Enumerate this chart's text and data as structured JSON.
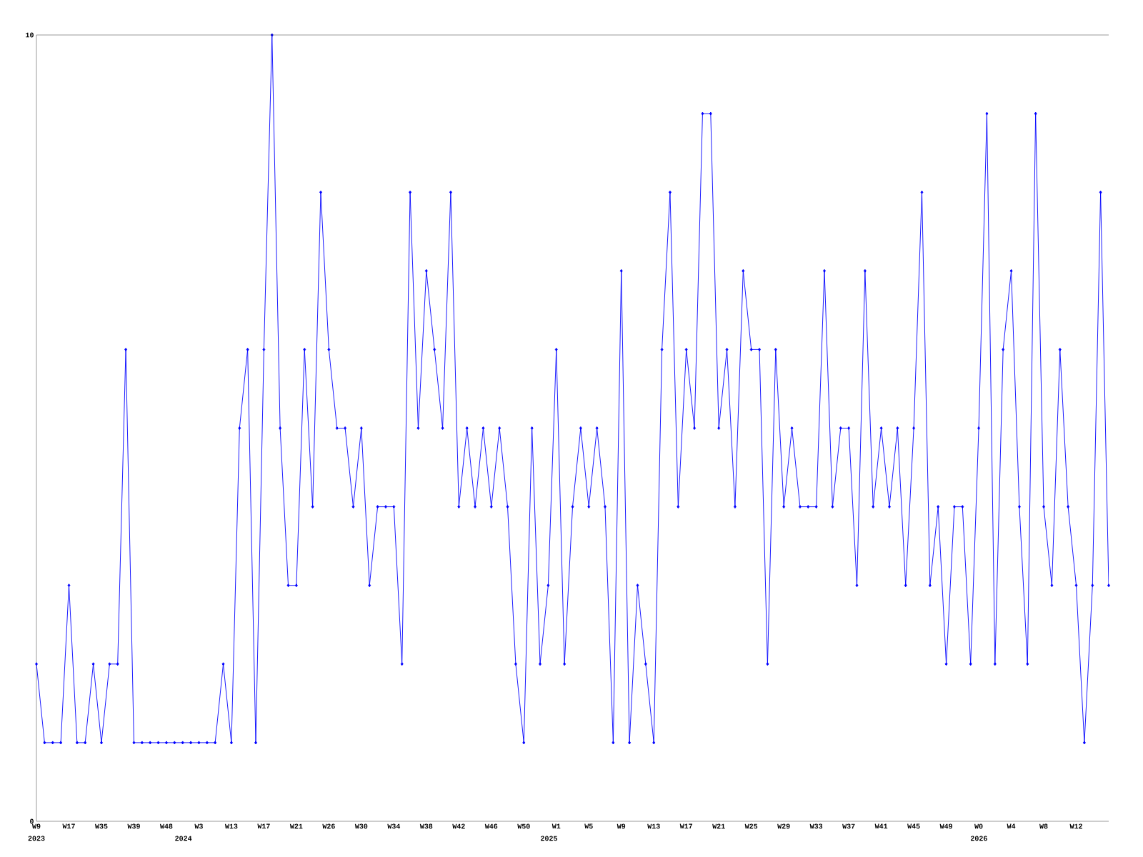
{
  "chart_data": {
    "type": "line",
    "categories": [
      "W9",
      null,
      null,
      null,
      "W17",
      null,
      null,
      null,
      "W35",
      null,
      null,
      null,
      "W39",
      null,
      null,
      null,
      "W48",
      null,
      null,
      null,
      "W3",
      null,
      null,
      null,
      "W13",
      null,
      null,
      null,
      "W17",
      null,
      null,
      null,
      "W21",
      null,
      null,
      null,
      "W26",
      null,
      null,
      null,
      "W30",
      null,
      null,
      null,
      "W34",
      null,
      null,
      null,
      "W38",
      null,
      null,
      null,
      "W42",
      null,
      null,
      null,
      "W46",
      null,
      null,
      null,
      "W50",
      null,
      null,
      null,
      "W1",
      null,
      null,
      null,
      "W5",
      null,
      null,
      null,
      "W9",
      null,
      null,
      null,
      "W13",
      null,
      null,
      null,
      "W17",
      null,
      null,
      null,
      "W21",
      null,
      null,
      null,
      "W25",
      null,
      null,
      null,
      "W29",
      null,
      null,
      null,
      "W33",
      null,
      null,
      null,
      "W37",
      null,
      null,
      null,
      "W41",
      null,
      null,
      null,
      "W45",
      null,
      null,
      null,
      "W49",
      null,
      null,
      null,
      "W0",
      null,
      null,
      null,
      "W4",
      null,
      null,
      null,
      "W8",
      null,
      null,
      null,
      "W12",
      null,
      null,
      null,
      null
    ],
    "series": [
      {
        "color": "#0000ff",
        "values": [
          2,
          1,
          1,
          1,
          3,
          1,
          1,
          2,
          1,
          2,
          2,
          6,
          1,
          1,
          1,
          1,
          1,
          1,
          1,
          1,
          1,
          1,
          1,
          2,
          1,
          5,
          6,
          1,
          6,
          10,
          5,
          3,
          3,
          6,
          4,
          8,
          6,
          5,
          5,
          4,
          5,
          3,
          4,
          4,
          4,
          2,
          8,
          5,
          7,
          6,
          5,
          8,
          4,
          5,
          4,
          5,
          4,
          5,
          4,
          2,
          1,
          5,
          2,
          3,
          6,
          2,
          4,
          5,
          4,
          5,
          4,
          1,
          7,
          1,
          3,
          2,
          1,
          6,
          8,
          4,
          6,
          5,
          9,
          9,
          5,
          6,
          4,
          7,
          6,
          6,
          2,
          6,
          4,
          5,
          4,
          4,
          4,
          7,
          4,
          5,
          5,
          3,
          7,
          4,
          5,
          4,
          5,
          3,
          5,
          8,
          3,
          4,
          2,
          4,
          4,
          2,
          5,
          9,
          2,
          6,
          7,
          4,
          2,
          9,
          4,
          3,
          6,
          4,
          3,
          1,
          3,
          8,
          3
        ]
      }
    ],
    "ylim": [
      0,
      10
    ],
    "yticks": [
      0,
      10
    ],
    "annotations": [
      "2023",
      "2024",
      "2025",
      "2026"
    ],
    "marker": "diamond",
    "line_style": "solid"
  }
}
